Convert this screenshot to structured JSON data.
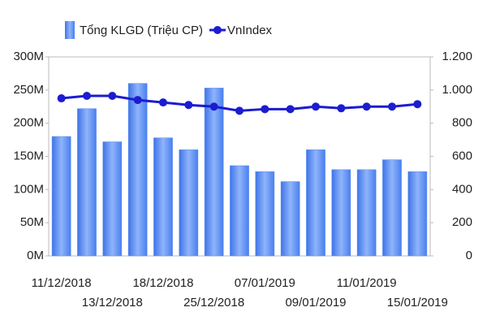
{
  "chart_data": {
    "type": "bar_line",
    "categories": [
      "11/12/2018",
      null,
      "13/12/2018",
      null,
      "18/12/2018",
      null,
      "25/12/2018",
      null,
      "07/01/2019",
      null,
      "09/01/2019",
      null,
      "11/01/2019",
      null,
      "15/01/2019"
    ],
    "series": [
      {
        "name": "Tổng KLGD (Triệu CP)",
        "type": "bar",
        "color": "#5b8ef2",
        "values": [
          180,
          222,
          172,
          260,
          178,
          160,
          253,
          136,
          127,
          112,
          160,
          130,
          130,
          145,
          127
        ]
      },
      {
        "name": "VnIndex",
        "type": "line",
        "axis": "y2",
        "color": "#1c1cd0",
        "values": [
          950,
          965,
          965,
          940,
          925,
          910,
          900,
          875,
          885,
          885,
          900,
          890,
          900,
          900,
          915
        ]
      }
    ],
    "ylim": [
      0,
      300
    ],
    "yticks": [
      {
        "value": 0,
        "label": "0M"
      },
      {
        "value": 50,
        "label": "50M"
      },
      {
        "value": 100,
        "label": "100M"
      },
      {
        "value": 150,
        "label": "150M"
      },
      {
        "value": 200,
        "label": "200M"
      },
      {
        "value": 250,
        "label": "250M"
      },
      {
        "value": 300,
        "label": "300M"
      }
    ],
    "y2lim": [
      0,
      1200
    ],
    "y2ticks": [
      0,
      200,
      400,
      600,
      800,
      {
        "value": 1000,
        "label": "1.000"
      },
      {
        "value": 1200,
        "label": "1.200"
      }
    ]
  }
}
